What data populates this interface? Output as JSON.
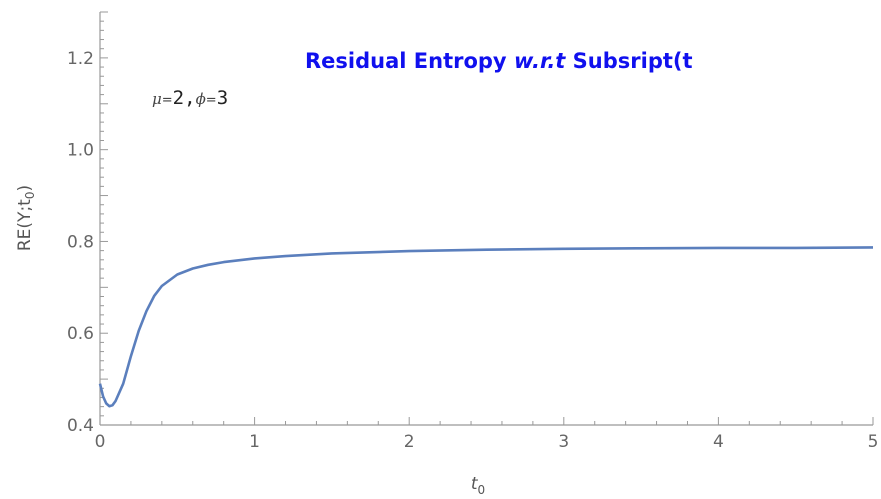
{
  "chart_data": {
    "type": "line",
    "title": {
      "prefix": "Residual Entropy ",
      "italic": "w.r.t",
      "suffix": " Subsript(t"
    },
    "annotation": {
      "mu_symbol": "μ",
      "mu_value": "2",
      "separator": ",",
      "phi_symbol": "ϕ",
      "phi_value": "3",
      "equals": "="
    },
    "xlabel": {
      "base": "t",
      "sub": "0"
    },
    "ylabel": {
      "prefix": "RE(Y;t",
      "sub": "0",
      "suffix": ")"
    },
    "xlim": [
      0,
      5
    ],
    "ylim": [
      0.4,
      1.3
    ],
    "xticks": [
      0,
      1,
      2,
      3,
      4,
      5
    ],
    "xtick_labels": [
      "0",
      "1",
      "2",
      "3",
      "4",
      "5"
    ],
    "yticks": [
      0.4,
      0.6,
      0.8,
      1.0,
      1.2
    ],
    "ytick_labels": [
      "0.4",
      "0.6",
      "0.8",
      "1.0",
      "1.2"
    ],
    "grid": false,
    "series": [
      {
        "color": "#5b7fbd",
        "x": [
          0,
          0.02,
          0.04,
          0.06,
          0.08,
          0.1,
          0.15,
          0.2,
          0.25,
          0.3,
          0.35,
          0.4,
          0.5,
          0.6,
          0.7,
          0.8,
          1.0,
          1.2,
          1.5,
          2.0,
          2.5,
          3.0,
          3.5,
          4.0,
          4.5,
          5.0
        ],
        "y": [
          0.49,
          0.462,
          0.447,
          0.441,
          0.443,
          0.452,
          0.49,
          0.55,
          0.605,
          0.648,
          0.681,
          0.703,
          0.728,
          0.741,
          0.749,
          0.755,
          0.763,
          0.768,
          0.774,
          0.779,
          0.782,
          0.784,
          0.785,
          0.786,
          0.786,
          0.787
        ]
      }
    ]
  }
}
